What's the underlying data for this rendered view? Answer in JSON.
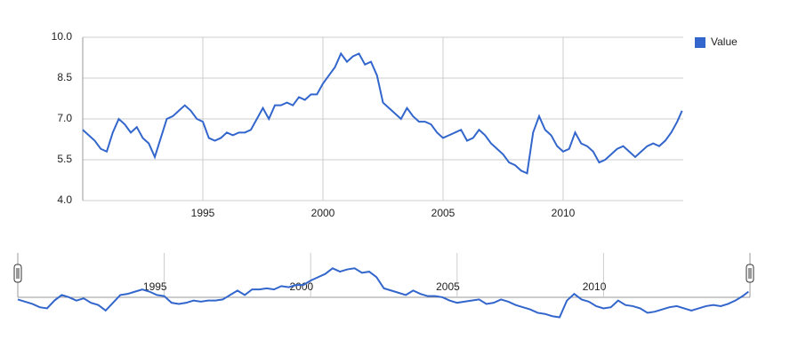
{
  "chart_data": {
    "type": "line",
    "x": [
      1990.0,
      1990.25,
      1990.5,
      1990.75,
      1991.0,
      1991.25,
      1991.5,
      1991.75,
      1992.0,
      1992.25,
      1992.5,
      1992.75,
      1993.0,
      1993.25,
      1993.5,
      1993.75,
      1994.0,
      1994.25,
      1994.5,
      1994.75,
      1995.0,
      1995.25,
      1995.5,
      1995.75,
      1996.0,
      1996.25,
      1996.5,
      1996.75,
      1997.0,
      1997.25,
      1997.5,
      1997.75,
      1998.0,
      1998.25,
      1998.5,
      1998.75,
      1999.0,
      1999.25,
      1999.5,
      1999.75,
      2000.0,
      2000.25,
      2000.5,
      2000.75,
      2001.0,
      2001.25,
      2001.5,
      2001.75,
      2002.0,
      2002.25,
      2002.5,
      2002.75,
      2003.0,
      2003.25,
      2003.5,
      2003.75,
      2004.0,
      2004.25,
      2004.5,
      2004.75,
      2005.0,
      2005.25,
      2005.5,
      2005.75,
      2006.0,
      2006.25,
      2006.5,
      2006.75,
      2007.0,
      2007.25,
      2007.5,
      2007.75,
      2008.0,
      2008.25,
      2008.5,
      2008.75,
      2009.0,
      2009.25,
      2009.5,
      2009.75,
      2010.0,
      2010.25,
      2010.5,
      2010.75,
      2011.0,
      2011.25,
      2011.5,
      2011.75,
      2012.0,
      2012.25,
      2012.5,
      2012.75,
      2013.0,
      2013.25,
      2013.5,
      2013.75,
      2014.0,
      2014.25,
      2014.5,
      2014.75,
      2014.95
    ],
    "series": [
      {
        "name": "Value",
        "color": "#3366cc",
        "values": [
          6.6,
          6.4,
          6.2,
          5.9,
          5.8,
          6.5,
          7.0,
          6.8,
          6.5,
          6.7,
          6.3,
          6.1,
          5.6,
          6.3,
          7.0,
          7.1,
          7.3,
          7.5,
          7.3,
          7.0,
          6.9,
          6.3,
          6.2,
          6.3,
          6.5,
          6.4,
          6.5,
          6.5,
          6.6,
          7.0,
          7.4,
          7.0,
          7.5,
          7.5,
          7.6,
          7.5,
          7.8,
          7.7,
          7.9,
          7.9,
          8.3,
          8.6,
          8.9,
          9.4,
          9.1,
          9.3,
          9.4,
          9.0,
          9.1,
          8.6,
          7.6,
          7.4,
          7.2,
          7.0,
          7.4,
          7.1,
          6.9,
          6.9,
          6.8,
          6.5,
          6.3,
          6.4,
          6.5,
          6.6,
          6.2,
          6.3,
          6.6,
          6.4,
          6.1,
          5.9,
          5.7,
          5.4,
          5.3,
          5.1,
          5.0,
          6.5,
          7.1,
          6.6,
          6.4,
          6.0,
          5.8,
          5.9,
          6.5,
          6.1,
          6.0,
          5.8,
          5.4,
          5.5,
          5.7,
          5.9,
          6.0,
          5.8,
          5.6,
          5.8,
          6.0,
          6.1,
          6.0,
          6.2,
          6.5,
          6.9,
          7.3
        ]
      }
    ],
    "xlim": [
      1990,
      2015
    ],
    "xticks": [
      1995,
      2000,
      2005,
      2010
    ],
    "ylim": [
      4,
      10
    ],
    "yticks": [
      {
        "value": 4,
        "label": "4.0"
      },
      {
        "value": 5.5,
        "label": "5.5"
      },
      {
        "value": 7,
        "label": "7.0"
      },
      {
        "value": 8.5,
        "label": "8.5"
      },
      {
        "value": 10,
        "label": "10.0"
      }
    ],
    "grid": true,
    "legend": "right"
  }
}
